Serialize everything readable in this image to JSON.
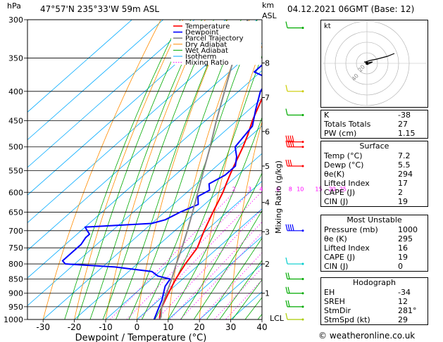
{
  "header": {
    "location": "47°57'N  235°33'W  59m  ASL",
    "datetime": "04.12.2021  06GMT  (Base: 12)",
    "hpa_label": "hPa",
    "km_label": "km",
    "asl_label": "ASL",
    "mixing_label": "Mixing Ratio (g/kg)"
  },
  "chart_data": {
    "type": "line",
    "title": "Skew-T log-P sounding",
    "xlabel": "Dewpoint / Temperature (°C)",
    "ylabel": "hPa",
    "xlim": [
      -35,
      40
    ],
    "ylim": [
      1000,
      300
    ],
    "x_ticks": [
      "-30",
      "-20",
      "-10",
      "0",
      "10",
      "20",
      "30",
      "40"
    ],
    "x_tick_values": [
      -30,
      -20,
      -10,
      0,
      10,
      20,
      30,
      40
    ],
    "pressure_levels": [
      300,
      350,
      400,
      450,
      500,
      550,
      600,
      650,
      700,
      750,
      800,
      850,
      900,
      950,
      1000
    ],
    "pressure_labels": [
      "300",
      "350",
      "400",
      "450",
      "500",
      "550",
      "600",
      "650",
      "700",
      "750",
      "800",
      "850",
      "900",
      "950",
      "1000"
    ],
    "km_ticks": [
      {
        "km": "1",
        "p": 900
      },
      {
        "km": "2",
        "p": 800
      },
      {
        "km": "3",
        "p": 703
      },
      {
        "km": "4",
        "p": 625
      },
      {
        "km": "5",
        "p": 540
      },
      {
        "km": "6",
        "p": 470
      },
      {
        "km": "7",
        "p": 410
      },
      {
        "km": "8",
        "p": 357
      }
    ],
    "lcl_label": "LCL",
    "lcl_p": 995,
    "mixing_ratio_labels": [
      "2",
      "3",
      "4",
      "6",
      "8",
      "10",
      "15",
      "20",
      "25"
    ],
    "mixing_ratio_values": [
      2,
      3,
      4,
      6,
      8,
      10,
      15,
      20,
      25
    ],
    "legend": [
      {
        "name": "Temperature",
        "color": "#ff0000"
      },
      {
        "name": "Dewpoint",
        "color": "#0000ff"
      },
      {
        "name": "Parcel Trajectory",
        "color": "#888888"
      },
      {
        "name": "Dry Adiabat",
        "color": "#ff8c00"
      },
      {
        "name": "Wet Adiabat",
        "color": "#00aa00"
      },
      {
        "name": "Isotherm",
        "color": "#00aaff"
      },
      {
        "name": "Mixing Ratio",
        "color": "#ff00ff"
      }
    ],
    "series": [
      {
        "name": "Temperature",
        "color": "#ff0000",
        "points": [
          [
            1000,
            7.2
          ],
          [
            975,
            5.2
          ],
          [
            950,
            3.4
          ],
          [
            925,
            2.0
          ],
          [
            900,
            0.6
          ],
          [
            875,
            -0.8
          ],
          [
            850,
            -2.2
          ],
          [
            825,
            -3.4
          ],
          [
            800,
            -4.6
          ],
          [
            775,
            -5.6
          ],
          [
            750,
            -6.6
          ],
          [
            725,
            -8.6
          ],
          [
            700,
            -10.6
          ],
          [
            650,
            -14.5
          ],
          [
            600,
            -18.5
          ],
          [
            575,
            -21.0
          ],
          [
            550,
            -23.5
          ],
          [
            500,
            -28.5
          ],
          [
            475,
            -31.5
          ],
          [
            450,
            -35.0
          ],
          [
            400,
            -41.5
          ],
          [
            350,
            -49.0
          ],
          [
            320,
            -53.0
          ],
          [
            300,
            -56.0
          ]
        ]
      },
      {
        "name": "Dewpoint",
        "color": "#0000ff",
        "points": [
          [
            1000,
            5.5
          ],
          [
            950,
            2.5
          ],
          [
            925,
            1.0
          ],
          [
            900,
            -1.0
          ],
          [
            875,
            -3.0
          ],
          [
            850,
            -4.0
          ],
          [
            840,
            -9.0
          ],
          [
            825,
            -12.5
          ],
          [
            810,
            -26.0
          ],
          [
            800,
            -43.0
          ],
          [
            790,
            -45.0
          ],
          [
            780,
            -45.0
          ],
          [
            770,
            -45.0
          ],
          [
            760,
            -45.0
          ],
          [
            740,
            -45.0
          ],
          [
            720,
            -46.0
          ],
          [
            710,
            -46.0
          ],
          [
            700,
            -48.0
          ],
          [
            690,
            -50.0
          ],
          [
            680,
            -30.0
          ],
          [
            670,
            -27.0
          ],
          [
            650,
            -25.0
          ],
          [
            630,
            -22.0
          ],
          [
            610,
            -25.0
          ],
          [
            595,
            -23.5
          ],
          [
            580,
            -26.0
          ],
          [
            560,
            -24.0
          ],
          [
            540,
            -24.0
          ],
          [
            520,
            -27.0
          ],
          [
            500,
            -31.0
          ],
          [
            460,
            -33.0
          ],
          [
            430,
            -38.0
          ],
          [
            400,
            -43.0
          ],
          [
            380,
            -45.0
          ],
          [
            370,
            -52.0
          ],
          [
            350,
            -52.0
          ],
          [
            330,
            -58.0
          ],
          [
            320,
            -56.0
          ],
          [
            300,
            -60.0
          ]
        ]
      },
      {
        "name": "Parcel Trajectory",
        "color": "#888888",
        "points": [
          [
            1000,
            7.2
          ],
          [
            990,
            6.8
          ],
          [
            950,
            3.3
          ],
          [
            900,
            0.0
          ],
          [
            850,
            -3.5
          ],
          [
            800,
            -7.5
          ],
          [
            750,
            -11.5
          ],
          [
            700,
            -16.0
          ],
          [
            650,
            -21.0
          ],
          [
            600,
            -26.5
          ],
          [
            550,
            -32.5
          ],
          [
            500,
            -39.0
          ],
          [
            450,
            -46.5
          ],
          [
            400,
            -54.5
          ],
          [
            350,
            -63.5
          ],
          [
            300,
            -73.0
          ]
        ]
      }
    ]
  },
  "indices": [
    {
      "label": "K",
      "value": "-38"
    },
    {
      "label": "Totals Totals",
      "value": "27"
    },
    {
      "label": "PW (cm)",
      "value": "1.15"
    }
  ],
  "surface": {
    "title": "Surface",
    "rows": [
      {
        "label": "Temp (°C)",
        "value": "7.2"
      },
      {
        "label": "Dewp (°C)",
        "value": "5.5"
      },
      {
        "label": "θe(K)",
        "value": "294"
      },
      {
        "label": "Lifted Index",
        "value": "17"
      },
      {
        "label": "CAPE (J)",
        "value": "2"
      },
      {
        "label": "CIN (J)",
        "value": "19"
      }
    ]
  },
  "unstable": {
    "title": "Most Unstable",
    "rows": [
      {
        "label": "Pressure (mb)",
        "value": "1000"
      },
      {
        "label": "θe (K)",
        "value": "295"
      },
      {
        "label": "Lifted Index",
        "value": "16"
      },
      {
        "label": "CAPE (J)",
        "value": "19"
      },
      {
        "label": "CIN (J)",
        "value": "0"
      }
    ]
  },
  "hodograph_box": {
    "title": "Hodograph",
    "rows": [
      {
        "label": "EH",
        "value": "-34"
      },
      {
        "label": "SREH",
        "value": "12"
      },
      {
        "label": "StmDir",
        "value": "281°"
      },
      {
        "label": "StmSpd (kt)",
        "value": "29"
      }
    ]
  },
  "hodograph": {
    "label": "kt",
    "ring_labels": [
      "20",
      "40"
    ],
    "ring_values": [
      20,
      40
    ]
  },
  "footer": "© weatheronline.co.uk"
}
